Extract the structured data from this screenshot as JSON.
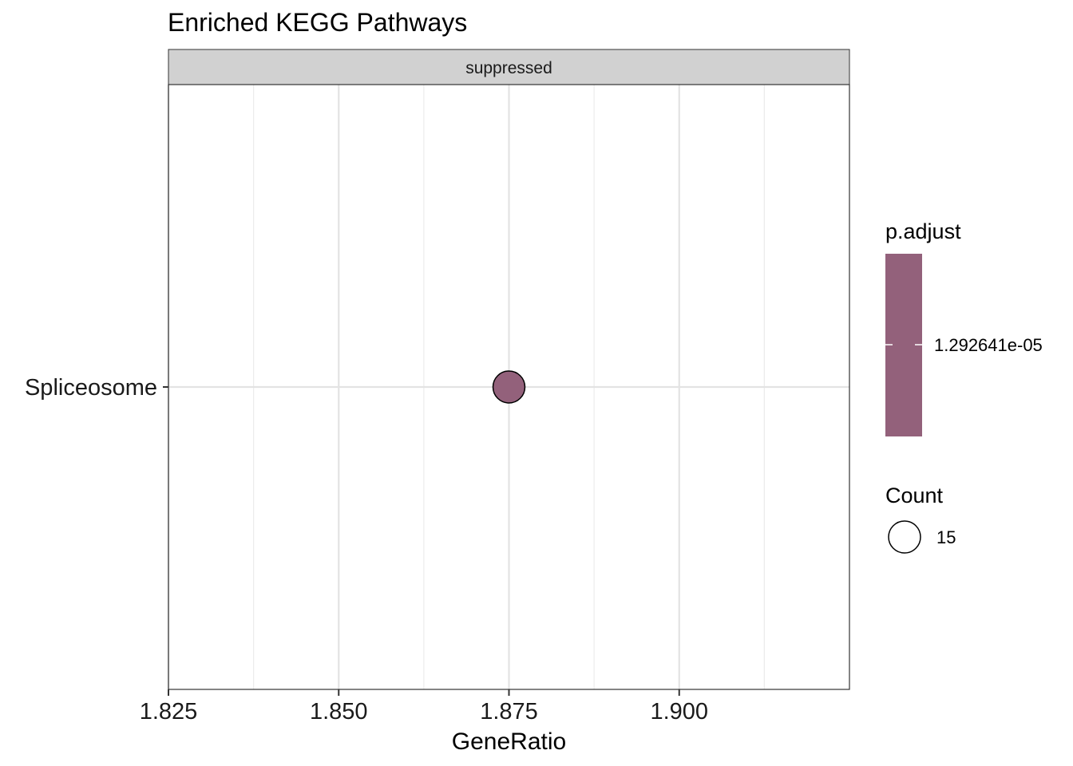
{
  "chart_data": {
    "type": "scatter",
    "title": "Enriched KEGG Pathways",
    "facet_label": "suppressed",
    "xlabel": "GeneRatio",
    "ylabel": "",
    "x_ticks": [
      1.825,
      1.85,
      1.875,
      1.9
    ],
    "x_tick_labels": [
      "1.825",
      "1.850",
      "1.875",
      "1.900"
    ],
    "xlim": [
      1.825,
      1.925
    ],
    "categories": [
      "Spliceosome"
    ],
    "points": [
      {
        "category": "Spliceosome",
        "x": 1.875,
        "count": 15,
        "p_adjust": 1.292641e-05,
        "color": "#93617b"
      }
    ],
    "grid": true,
    "legend_position": "right",
    "legends": {
      "color": {
        "title": "p.adjust",
        "label": "1.292641e-05",
        "color": "#93617b"
      },
      "size": {
        "title": "Count",
        "label": "15"
      }
    }
  }
}
